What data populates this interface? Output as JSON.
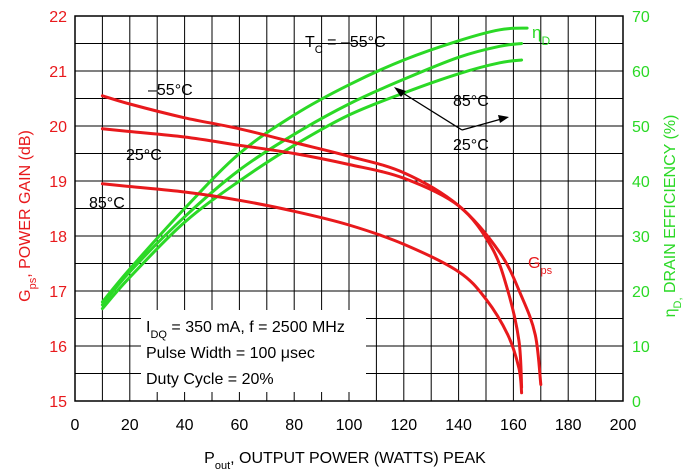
{
  "chart_data": {
    "type": "line",
    "x_axis": {
      "label_main": "P",
      "label_sub": "out",
      "label_rest": ", OUTPUT POWER (WATTS) PEAK",
      "range": [
        0,
        200
      ],
      "ticks": [
        "0",
        "20",
        "40",
        "60",
        "80",
        "100",
        "120",
        "140",
        "160",
        "180",
        "200"
      ]
    },
    "y_left": {
      "label_main": "G",
      "label_sub": "ps",
      "label_rest": ", POWER GAIN (dB)",
      "range": [
        15,
        22
      ],
      "ticks": [
        "15",
        "16",
        "17",
        "18",
        "19",
        "20",
        "21",
        "22"
      ],
      "color": "#e8191c"
    },
    "y_right": {
      "label_main": "η",
      "label_sub": "D,",
      "label_rest": " DRAIN EFFICIENCY (%)",
      "range": [
        0,
        70
      ],
      "ticks": [
        "0",
        "10",
        "20",
        "30",
        "40",
        "50",
        "60",
        "70"
      ],
      "color": "#2bd926"
    },
    "gain_series": [
      {
        "temp": "-55°C",
        "color": "#e8191c",
        "x": [
          10,
          20,
          40,
          60,
          80,
          100,
          120,
          140,
          155,
          163,
          168,
          170
        ],
        "y": [
          20.55,
          20.4,
          20.15,
          19.95,
          19.7,
          19.45,
          19.15,
          18.55,
          17.7,
          16.9,
          16.2,
          15.3
        ]
      },
      {
        "temp": "25°C",
        "color": "#e8191c",
        "x": [
          10,
          20,
          40,
          60,
          80,
          100,
          120,
          140,
          152,
          158,
          162,
          163
        ],
        "y": [
          19.95,
          19.9,
          19.8,
          19.65,
          19.5,
          19.3,
          19.05,
          18.55,
          17.8,
          17.0,
          16.1,
          15.25
        ]
      },
      {
        "temp": "85°C",
        "color": "#e8191c",
        "x": [
          10,
          20,
          40,
          60,
          80,
          100,
          120,
          140,
          150,
          158,
          162,
          163
        ],
        "y": [
          18.95,
          18.9,
          18.8,
          18.65,
          18.45,
          18.2,
          17.85,
          17.35,
          16.85,
          16.2,
          15.6,
          15.15
        ]
      }
    ],
    "eff_series": [
      {
        "temp": "-55°C",
        "color": "#2bd926",
        "x": [
          10,
          20,
          40,
          60,
          80,
          100,
          120,
          140,
          155,
          165
        ],
        "y": [
          18.0,
          24.0,
          35.0,
          45.0,
          52.0,
          57.5,
          62.0,
          65.5,
          67.5,
          67.8
        ]
      },
      {
        "temp": "25°C",
        "color": "#2bd926",
        "x": [
          10,
          20,
          40,
          60,
          80,
          100,
          120,
          140,
          155,
          163
        ],
        "y": [
          17.5,
          23.5,
          33.5,
          42.0,
          48.5,
          54.0,
          58.5,
          62.5,
          64.5,
          65.0
        ]
      },
      {
        "temp": "85°C",
        "color": "#2bd926",
        "x": [
          10,
          20,
          40,
          60,
          80,
          100,
          120,
          140,
          155,
          163
        ],
        "y": [
          16.8,
          22.5,
          32.5,
          40.0,
          46.5,
          52.0,
          56.0,
          59.5,
          61.5,
          62.0
        ]
      }
    ],
    "annotations": {
      "tc_text_a": "T",
      "tc_text_sub": "C",
      "tc_text_b": " = –55°C",
      "eta_main": "η",
      "eta_sub": "D",
      "gps_main": "G",
      "gps_sub": "ps",
      "t_m55": "–55°C",
      "t_25_gain": "25°C",
      "t_85_gain": "85°C",
      "t_85_eff": "85°C",
      "t_25_eff": "25°C",
      "cond1_a": "I",
      "cond1_sub": "DQ",
      "cond1_b": " = 350 mA, f = 2500 MHz",
      "cond2": "Pulse Width = 100 μsec",
      "cond3": "Duty Cycle = 20%"
    },
    "grid": true
  }
}
